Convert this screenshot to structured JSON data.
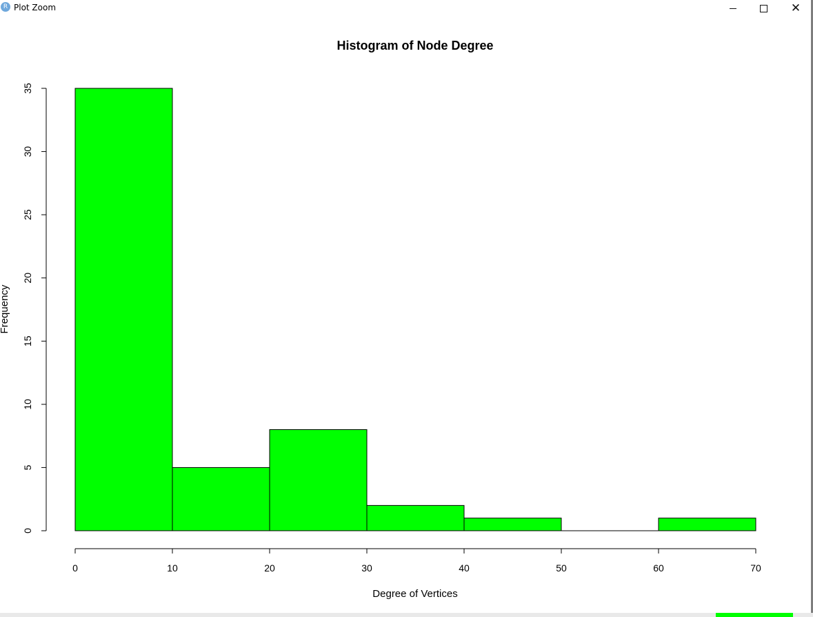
{
  "window": {
    "app_icon": "R",
    "title": "Plot Zoom",
    "icons": [
      "r-logo-icon",
      "minimize-icon",
      "maximize-icon",
      "close-icon"
    ]
  },
  "chart_data": {
    "type": "bar",
    "title": "Histogram of Node Degree",
    "xlabel": "Degree of Vertices",
    "ylabel": "Frequency",
    "bins": [
      [
        0,
        10
      ],
      [
        10,
        20
      ],
      [
        20,
        30
      ],
      [
        30,
        40
      ],
      [
        40,
        50
      ],
      [
        50,
        60
      ],
      [
        60,
        70
      ]
    ],
    "values": [
      35,
      5,
      8,
      2,
      1,
      0,
      1
    ],
    "xlim": [
      0,
      70
    ],
    "ylim": [
      0,
      35
    ],
    "xticks": [
      "0",
      "10",
      "20",
      "30",
      "40",
      "50",
      "60",
      "70"
    ],
    "yticks": [
      "0",
      "5",
      "10",
      "15",
      "20",
      "25",
      "30",
      "35"
    ],
    "bar_color": "#00ff00",
    "grid": false
  }
}
